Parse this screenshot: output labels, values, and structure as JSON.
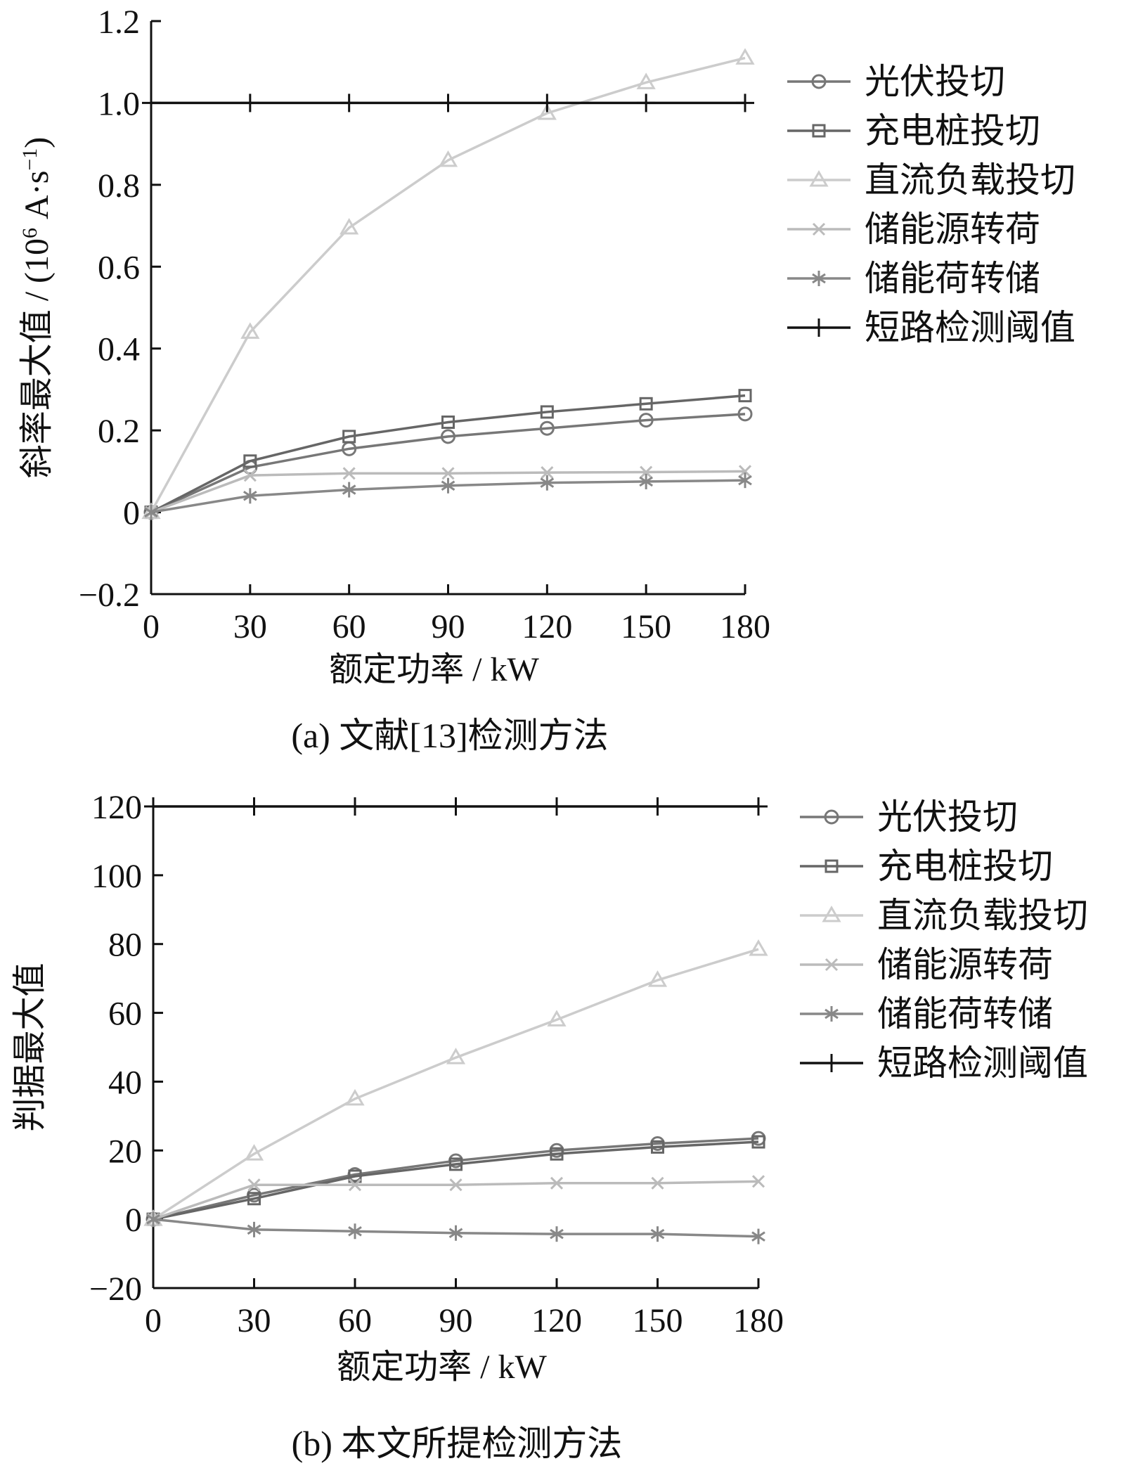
{
  "chart_data": [
    {
      "type": "line",
      "caption": "(a)  文献[13]检测方法",
      "xlabel": "额定功率 / kW",
      "ylabel": "斜率最大值 / (10",
      "ylabel_sup": "6",
      "ylabel_unit": " A·s",
      "ylabel_unit_sup": "−1",
      "ylabel_close": ")",
      "xlim": [
        0,
        180
      ],
      "ylim": [
        -0.2,
        1.2
      ],
      "x_ticks": [
        "0",
        "30",
        "60",
        "90",
        "120",
        "150",
        "180"
      ],
      "y_ticks": [
        "−0.2",
        "0",
        "0.2",
        "0.4",
        "0.6",
        "0.8",
        "1.0",
        "1.2"
      ],
      "x": [
        0,
        30,
        60,
        90,
        120,
        150,
        180
      ],
      "series": [
        {
          "name": "光伏投切",
          "marker": "circle",
          "color": "#777777",
          "values": [
            0,
            0.11,
            0.155,
            0.185,
            0.205,
            0.225,
            0.24
          ]
        },
        {
          "name": "充电桩投切",
          "marker": "square",
          "color": "#666666",
          "values": [
            0,
            0.125,
            0.185,
            0.22,
            0.245,
            0.265,
            0.285
          ]
        },
        {
          "name": "直流负载投切",
          "marker": "triangle",
          "color": "#cccccc",
          "values": [
            0,
            0.44,
            0.695,
            0.86,
            0.975,
            1.05,
            1.11
          ]
        },
        {
          "name": "储能源转荷",
          "marker": "x",
          "color": "#bbbbbb",
          "values": [
            0,
            0.09,
            0.095,
            0.095,
            0.097,
            0.098,
            0.1
          ]
        },
        {
          "name": "储能荷转储",
          "marker": "asterisk",
          "color": "#888888",
          "values": [
            0,
            0.04,
            0.055,
            0.065,
            0.072,
            0.075,
            0.078
          ]
        },
        {
          "name": "短路检测阈值",
          "marker": "plus",
          "color": "#111111",
          "values": [
            1.0,
            1.0,
            1.0,
            1.0,
            1.0,
            1.0,
            1.0
          ]
        }
      ],
      "grid": false,
      "legend": "right"
    },
    {
      "type": "line",
      "caption": "(b)  本文所提检测方法",
      "xlabel": "额定功率 / kW",
      "ylabel": "判据最大值",
      "xlim": [
        0,
        180
      ],
      "ylim": [
        -20,
        120
      ],
      "x_ticks": [
        "0",
        "30",
        "60",
        "90",
        "120",
        "150",
        "180"
      ],
      "y_ticks": [
        "−20",
        "0",
        "20",
        "40",
        "60",
        "80",
        "100",
        "120"
      ],
      "x": [
        0,
        30,
        60,
        90,
        120,
        150,
        180
      ],
      "series": [
        {
          "name": "光伏投切",
          "marker": "circle",
          "color": "#777777",
          "values": [
            0,
            7,
            13,
            17,
            20,
            22,
            23.5
          ]
        },
        {
          "name": "充电桩投切",
          "marker": "square",
          "color": "#666666",
          "values": [
            0,
            6,
            12.5,
            16,
            19,
            21,
            22.5
          ]
        },
        {
          "name": "直流负载投切",
          "marker": "triangle",
          "color": "#cccccc",
          "values": [
            0,
            19,
            35,
            47,
            58,
            69.5,
            78.5
          ]
        },
        {
          "name": "储能源转荷",
          "marker": "x",
          "color": "#bbbbbb",
          "values": [
            0,
            10,
            10,
            10,
            10.5,
            10.5,
            11
          ]
        },
        {
          "name": "储能荷转储",
          "marker": "asterisk",
          "color": "#888888",
          "values": [
            0,
            -3,
            -3.5,
            -4,
            -4.3,
            -4.3,
            -5
          ]
        },
        {
          "name": "短路检测阈值",
          "marker": "plus",
          "color": "#111111",
          "values": [
            120,
            120,
            120,
            120,
            120,
            120,
            120
          ]
        }
      ],
      "grid": false,
      "legend": "right"
    }
  ]
}
